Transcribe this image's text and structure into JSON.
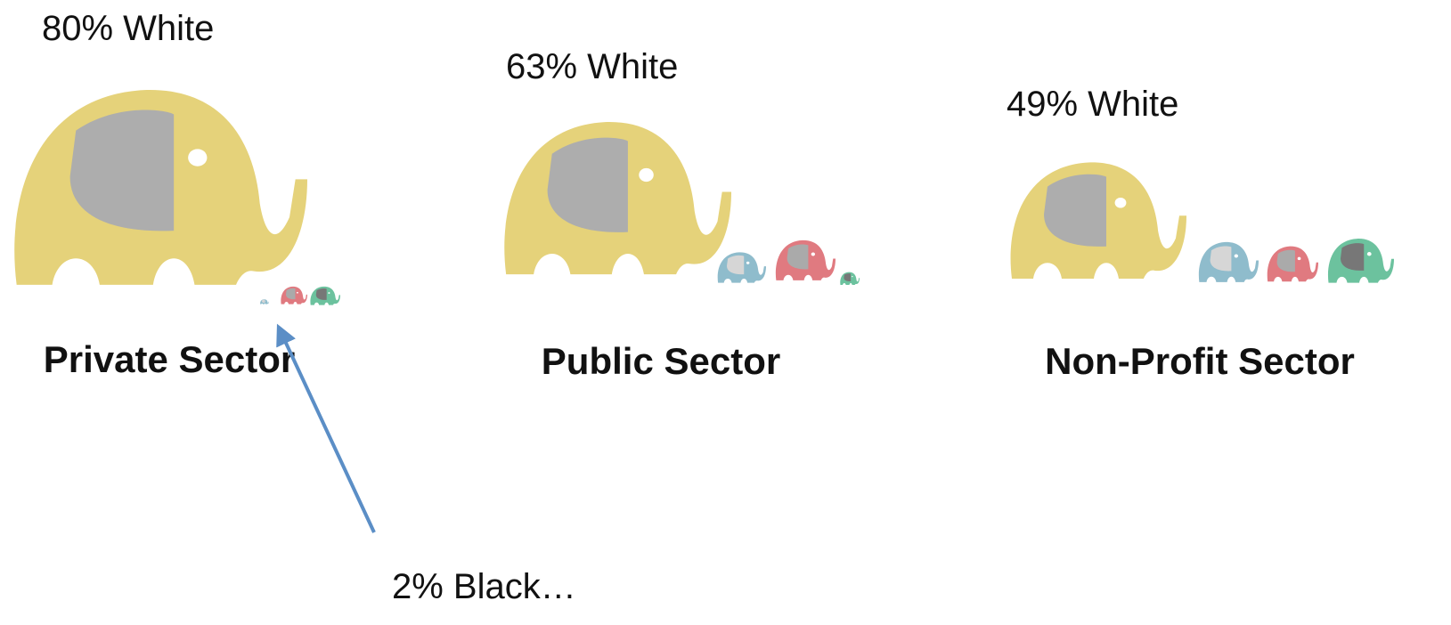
{
  "panels": [
    {
      "label": "80% White",
      "sector": "Private Sector"
    },
    {
      "label": "63% White",
      "sector": "Public Sector"
    },
    {
      "label": "49% White",
      "sector": "Non-Profit Sector"
    }
  ],
  "annotation": "2% Black…"
}
